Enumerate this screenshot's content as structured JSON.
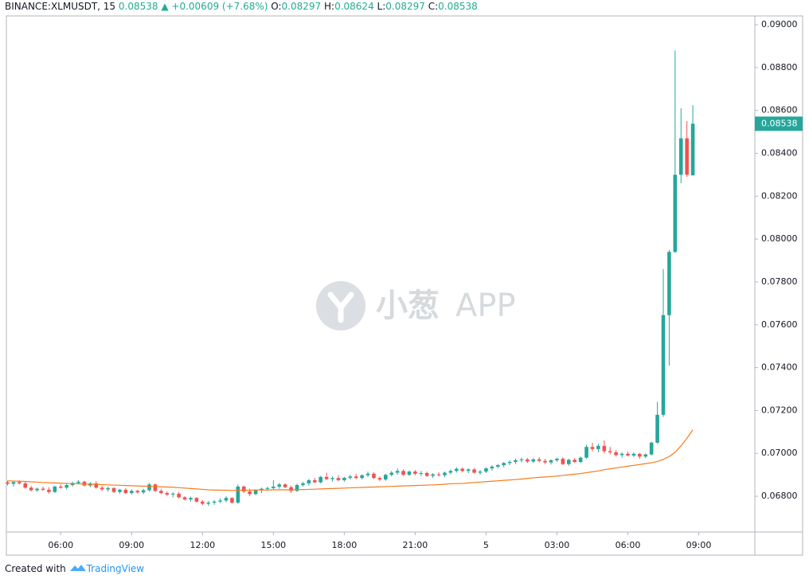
{
  "header": {
    "symbol": "BINANCE:XLMUSDT, 15",
    "last": "0.08538",
    "change": "+0.00609 (+7.68%)",
    "o_label": "O:",
    "o": "0.08297",
    "h_label": "H:",
    "h": "0.08624",
    "l_label": "L:",
    "l": "0.08297",
    "c_label": "C:",
    "c": "0.08538"
  },
  "watermark": {
    "brand": "小葱",
    "suffix": "APP"
  },
  "footer": {
    "created": "Created with",
    "brand": "TradingView"
  },
  "chart_data": {
    "type": "candlestick",
    "up_color": "#26a69a",
    "down_color": "#ef5350",
    "ma_color": "#f57c1f",
    "xlim": [
      -0.2,
      126.5
    ],
    "xticks": [
      {
        "value": 9,
        "label": "06:00"
      },
      {
        "value": 21,
        "label": "09:00"
      },
      {
        "value": 33,
        "label": "12:00"
      },
      {
        "value": 45,
        "label": "15:00"
      },
      {
        "value": 57,
        "label": "18:00"
      },
      {
        "value": 69,
        "label": "21:00"
      },
      {
        "value": 81,
        "label": "5"
      },
      {
        "value": 93,
        "label": "03:00"
      },
      {
        "value": 105,
        "label": "06:00"
      },
      {
        "value": 117,
        "label": "09:00"
      }
    ],
    "ylim": [
      0.06633,
      0.09041
    ],
    "yticks": [
      {
        "value": 0.068,
        "label": "0.06800"
      },
      {
        "value": 0.07,
        "label": "0.07000"
      },
      {
        "value": 0.072,
        "label": "0.07200"
      },
      {
        "value": 0.074,
        "label": "0.07400"
      },
      {
        "value": 0.076,
        "label": "0.07600"
      },
      {
        "value": 0.078,
        "label": "0.07800"
      },
      {
        "value": 0.08,
        "label": "0.08000"
      },
      {
        "value": 0.082,
        "label": "0.08200"
      },
      {
        "value": 0.084,
        "label": "0.08400"
      },
      {
        "value": 0.086,
        "label": "0.08600"
      },
      {
        "value": 0.088,
        "label": "0.08800"
      },
      {
        "value": 0.09,
        "label": "0.09000"
      }
    ],
    "last_price": {
      "value": 0.08538,
      "label": "0.08538"
    },
    "ohlc": [
      [
        0.06865,
        0.06872,
        0.0685,
        0.06858
      ],
      [
        0.06858,
        0.0687,
        0.06845,
        0.06866
      ],
      [
        0.06866,
        0.06874,
        0.06855,
        0.0686
      ],
      [
        0.0686,
        0.06868,
        0.06835,
        0.0684
      ],
      [
        0.0684,
        0.06848,
        0.06822,
        0.06828
      ],
      [
        0.06828,
        0.0684,
        0.0682,
        0.06835
      ],
      [
        0.06835,
        0.06845,
        0.06825,
        0.0683
      ],
      [
        0.0683,
        0.06842,
        0.06812,
        0.0682
      ],
      [
        0.0682,
        0.0685,
        0.06815,
        0.06845
      ],
      [
        0.06845,
        0.06855,
        0.06835,
        0.0684
      ],
      [
        0.0684,
        0.06858,
        0.06832,
        0.06852
      ],
      [
        0.06852,
        0.06868,
        0.06845,
        0.06862
      ],
      [
        0.06862,
        0.06875,
        0.06855,
        0.06868
      ],
      [
        0.06868,
        0.06872,
        0.06845,
        0.0685
      ],
      [
        0.0685,
        0.06866,
        0.06842,
        0.0686
      ],
      [
        0.0686,
        0.0687,
        0.06835,
        0.0684
      ],
      [
        0.0684,
        0.06848,
        0.06825,
        0.06832
      ],
      [
        0.06832,
        0.06845,
        0.06822,
        0.06838
      ],
      [
        0.06838,
        0.06842,
        0.06815,
        0.0682
      ],
      [
        0.0682,
        0.06835,
        0.06812,
        0.0683
      ],
      [
        0.0683,
        0.06838,
        0.0681,
        0.06815
      ],
      [
        0.06815,
        0.06832,
        0.06808,
        0.06825
      ],
      [
        0.06825,
        0.0683,
        0.06812,
        0.06818
      ],
      [
        0.06818,
        0.06835,
        0.0681,
        0.06828
      ],
      [
        0.06828,
        0.06862,
        0.06822,
        0.06855
      ],
      [
        0.06855,
        0.0686,
        0.0682,
        0.06825
      ],
      [
        0.06825,
        0.06835,
        0.0681,
        0.06815
      ],
      [
        0.06815,
        0.06822,
        0.068,
        0.06808
      ],
      [
        0.06808,
        0.06818,
        0.06795,
        0.06812
      ],
      [
        0.06812,
        0.0682,
        0.0679,
        0.06795
      ],
      [
        0.06795,
        0.068,
        0.0678,
        0.06785
      ],
      [
        0.06785,
        0.06798,
        0.06775,
        0.06792
      ],
      [
        0.06792,
        0.06796,
        0.0677,
        0.06775
      ],
      [
        0.06775,
        0.06782,
        0.06758,
        0.06765
      ],
      [
        0.06765,
        0.06778,
        0.06755,
        0.0677
      ],
      [
        0.0677,
        0.06782,
        0.0676,
        0.06775
      ],
      [
        0.06775,
        0.0679,
        0.06768,
        0.0678
      ],
      [
        0.0678,
        0.068,
        0.06772,
        0.06792
      ],
      [
        0.06792,
        0.06795,
        0.06765,
        0.0677
      ],
      [
        0.0677,
        0.06855,
        0.06765,
        0.06845
      ],
      [
        0.06845,
        0.0685,
        0.06815,
        0.06822
      ],
      [
        0.06822,
        0.06835,
        0.068,
        0.0681
      ],
      [
        0.0681,
        0.06832,
        0.06805,
        0.06828
      ],
      [
        0.06828,
        0.0684,
        0.06815,
        0.06835
      ],
      [
        0.06835,
        0.06845,
        0.06825,
        0.06838
      ],
      [
        0.06838,
        0.06875,
        0.0683,
        0.06845
      ],
      [
        0.06845,
        0.06862,
        0.06835,
        0.06855
      ],
      [
        0.06855,
        0.0686,
        0.06838,
        0.06842
      ],
      [
        0.06842,
        0.0685,
        0.06815,
        0.06825
      ],
      [
        0.06825,
        0.06858,
        0.0682,
        0.06852
      ],
      [
        0.06852,
        0.06868,
        0.06845,
        0.0686
      ],
      [
        0.0686,
        0.0688,
        0.0685,
        0.06875
      ],
      [
        0.06875,
        0.06885,
        0.0686,
        0.06865
      ],
      [
        0.06865,
        0.06895,
        0.0686,
        0.0689
      ],
      [
        0.0689,
        0.0691,
        0.06875,
        0.0688
      ],
      [
        0.0688,
        0.06892,
        0.06868,
        0.06885
      ],
      [
        0.06885,
        0.06898,
        0.0687,
        0.06875
      ],
      [
        0.06875,
        0.0689,
        0.06868,
        0.06886
      ],
      [
        0.06886,
        0.069,
        0.06878,
        0.06892
      ],
      [
        0.06892,
        0.06905,
        0.0688,
        0.06885
      ],
      [
        0.06885,
        0.06902,
        0.06878,
        0.06898
      ],
      [
        0.06898,
        0.06915,
        0.0689,
        0.06905
      ],
      [
        0.06905,
        0.06912,
        0.0688,
        0.06885
      ],
      [
        0.06885,
        0.06892,
        0.0687,
        0.06878
      ],
      [
        0.06878,
        0.06905,
        0.06872,
        0.069
      ],
      [
        0.069,
        0.06918,
        0.06892,
        0.0691
      ],
      [
        0.0691,
        0.0693,
        0.069,
        0.06918
      ],
      [
        0.06918,
        0.06925,
        0.06895,
        0.069
      ],
      [
        0.069,
        0.0692,
        0.06895,
        0.06915
      ],
      [
        0.06915,
        0.06922,
        0.06898,
        0.06905
      ],
      [
        0.06905,
        0.06918,
        0.06895,
        0.06908
      ],
      [
        0.06908,
        0.06915,
        0.0689,
        0.06895
      ],
      [
        0.06895,
        0.06908,
        0.06885,
        0.06902
      ],
      [
        0.06902,
        0.06912,
        0.06892,
        0.06898
      ],
      [
        0.06898,
        0.06915,
        0.0689,
        0.0691
      ],
      [
        0.0691,
        0.06925,
        0.06902,
        0.06918
      ],
      [
        0.06918,
        0.06935,
        0.0691,
        0.06928
      ],
      [
        0.06928,
        0.06935,
        0.06912,
        0.06918
      ],
      [
        0.06918,
        0.0693,
        0.06908,
        0.06925
      ],
      [
        0.06925,
        0.06932,
        0.06905,
        0.0691
      ],
      [
        0.0691,
        0.06922,
        0.069,
        0.06915
      ],
      [
        0.06915,
        0.06935,
        0.06908,
        0.0693
      ],
      [
        0.0693,
        0.06945,
        0.0692,
        0.06938
      ],
      [
        0.06938,
        0.0695,
        0.0693,
        0.06945
      ],
      [
        0.06945,
        0.0696,
        0.06935,
        0.06955
      ],
      [
        0.06955,
        0.06968,
        0.06945,
        0.0696
      ],
      [
        0.0696,
        0.06975,
        0.0695,
        0.06968
      ],
      [
        0.06968,
        0.0698,
        0.06958,
        0.06972
      ],
      [
        0.06972,
        0.06978,
        0.06955,
        0.06962
      ],
      [
        0.06962,
        0.06978,
        0.06955,
        0.06972
      ],
      [
        0.06972,
        0.06982,
        0.06958,
        0.06965
      ],
      [
        0.06965,
        0.06975,
        0.0695,
        0.06958
      ],
      [
        0.06958,
        0.06972,
        0.06948,
        0.06968
      ],
      [
        0.06968,
        0.0698,
        0.0696,
        0.06975
      ],
      [
        0.06975,
        0.06982,
        0.06945,
        0.0695
      ],
      [
        0.0695,
        0.06975,
        0.06942,
        0.0697
      ],
      [
        0.0697,
        0.06978,
        0.06955,
        0.0696
      ],
      [
        0.0696,
        0.06985,
        0.06955,
        0.0698
      ],
      [
        0.0698,
        0.0704,
        0.06975,
        0.0703
      ],
      [
        0.0703,
        0.0705,
        0.0701,
        0.0702
      ],
      [
        0.0702,
        0.07045,
        0.07005,
        0.07035
      ],
      [
        0.07035,
        0.0706,
        0.07,
        0.0701
      ],
      [
        0.0701,
        0.0703,
        0.06995,
        0.07005
      ],
      [
        0.07005,
        0.07015,
        0.06985,
        0.06992
      ],
      [
        0.06992,
        0.07005,
        0.0698,
        0.06998
      ],
      [
        0.06998,
        0.07008,
        0.06985,
        0.0699
      ],
      [
        0.0699,
        0.07005,
        0.06982,
        0.06998
      ],
      [
        0.06998,
        0.07002,
        0.06975,
        0.06985
      ],
      [
        0.06985,
        0.07,
        0.06978,
        0.06995
      ],
      [
        0.06995,
        0.07055,
        0.0699,
        0.0705
      ],
      [
        0.0705,
        0.0724,
        0.07045,
        0.0718
      ],
      [
        0.0718,
        0.0786,
        0.0717,
        0.07645
      ],
      [
        0.07645,
        0.0795,
        0.0741,
        0.0794
      ],
      [
        0.0794,
        0.0888,
        0.07935,
        0.083
      ],
      [
        0.083,
        0.0861,
        0.0826,
        0.0847
      ],
      [
        0.0847,
        0.0855,
        0.0829,
        0.083
      ],
      [
        0.08297,
        0.08624,
        0.08297,
        0.08538
      ]
    ],
    "ma": [
      0.06872,
      0.06871,
      0.0687,
      0.06869,
      0.06867,
      0.06866,
      0.06864,
      0.06863,
      0.06862,
      0.06861,
      0.0686,
      0.06859,
      0.06858,
      0.06857,
      0.06856,
      0.06855,
      0.06854,
      0.06853,
      0.06852,
      0.06851,
      0.0685,
      0.06849,
      0.06848,
      0.06847,
      0.06846,
      0.06845,
      0.06844,
      0.06843,
      0.06842,
      0.0684,
      0.06838,
      0.06836,
      0.06834,
      0.06832,
      0.0683,
      0.06829,
      0.06828,
      0.06828,
      0.06827,
      0.06828,
      0.06828,
      0.06828,
      0.06829,
      0.06829,
      0.06829,
      0.0683,
      0.0683,
      0.0683,
      0.0683,
      0.06831,
      0.06831,
      0.06832,
      0.06833,
      0.06834,
      0.06835,
      0.06836,
      0.06837,
      0.06838,
      0.06839,
      0.0684,
      0.06841,
      0.06842,
      0.06843,
      0.06844,
      0.06845,
      0.06846,
      0.06847,
      0.06848,
      0.06849,
      0.0685,
      0.06851,
      0.06852,
      0.06853,
      0.06854,
      0.06856,
      0.06858,
      0.06859,
      0.0686,
      0.06862,
      0.06864,
      0.06866,
      0.06868,
      0.0687,
      0.06872,
      0.06874,
      0.06876,
      0.06878,
      0.0688,
      0.06883,
      0.06886,
      0.06888,
      0.0689,
      0.06892,
      0.06894,
      0.06897,
      0.069,
      0.06903,
      0.06906,
      0.0691,
      0.06914,
      0.06918,
      0.06924,
      0.06928,
      0.06932,
      0.06936,
      0.0694,
      0.06944,
      0.06948,
      0.06952,
      0.06956,
      0.06962,
      0.06972,
      0.06985,
      0.07005,
      0.07035,
      0.0707,
      0.0711
    ]
  }
}
